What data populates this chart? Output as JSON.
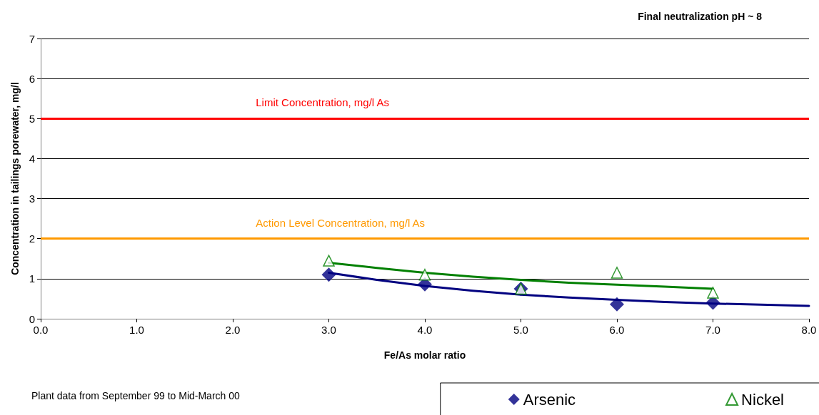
{
  "chart_data": {
    "type": "scatter",
    "xlabel": "Fe/As molar ratio",
    "ylabel": "Concentration in tailings porewater, mg/l",
    "xlim": [
      0,
      8
    ],
    "xticks": [
      {
        "value": 0,
        "label": "0.0"
      },
      {
        "value": 1,
        "label": "1.0"
      },
      {
        "value": 2,
        "label": "2.0"
      },
      {
        "value": 3,
        "label": "3.0"
      },
      {
        "value": 4,
        "label": "4.0"
      },
      {
        "value": 5,
        "label": "5.0"
      },
      {
        "value": 6,
        "label": "6.0"
      },
      {
        "value": 7,
        "label": "7.0"
      },
      {
        "value": 8,
        "label": "8.0"
      }
    ],
    "ylim": [
      0,
      7
    ],
    "yticks": [
      0,
      1,
      2,
      3,
      4,
      5,
      6,
      7
    ],
    "grid": "y",
    "legend": "bottom right",
    "series": [
      {
        "name": "Arsenic",
        "marker": "diamond",
        "color": "#000080",
        "x": [
          3,
          4,
          5,
          6,
          7
        ],
        "values": [
          1.1,
          0.86,
          0.75,
          0.36,
          0.4
        ]
      },
      {
        "name": "Nickel",
        "marker": "triangle",
        "color": "#008000",
        "x": [
          3,
          4,
          5,
          6,
          7
        ],
        "values": [
          1.45,
          1.1,
          0.75,
          1.15,
          0.65
        ]
      },
      {
        "type": "line",
        "marker": "none",
        "color": "#000080",
        "x": [
          3,
          3.5,
          4,
          4.5,
          5,
          5.5,
          6,
          6.5,
          7,
          7.5,
          8
        ],
        "values": [
          1.15,
          0.97,
          0.82,
          0.7,
          0.6,
          0.53,
          0.47,
          0.42,
          0.38,
          0.35,
          0.32
        ]
      },
      {
        "type": "line",
        "marker": "none",
        "color": "#008000",
        "x": [
          3,
          3.5,
          4,
          4.5,
          5,
          5.5,
          6,
          6.5,
          7
        ],
        "values": [
          1.4,
          1.27,
          1.15,
          1.05,
          0.97,
          0.9,
          0.85,
          0.8,
          0.75
        ]
      }
    ],
    "ref_lines": [
      {
        "axis": "y",
        "value": 5,
        "label": "Limit Concentration, mg/l As",
        "color": "#ff0000"
      },
      {
        "axis": "y",
        "value": 2,
        "label": "Action Level Concentration, mg/l As",
        "color": "#ff9900"
      }
    ],
    "annotations": [
      "Final neutralization pH ~ 8",
      "Plant data from September 99 to Mid-March 00"
    ]
  }
}
